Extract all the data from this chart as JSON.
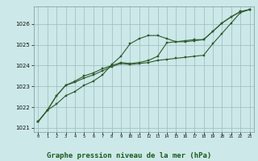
{
  "title": "Graphe pression niveau de la mer (hPa)",
  "hours": [
    0,
    1,
    2,
    3,
    4,
    5,
    6,
    7,
    8,
    9,
    10,
    11,
    12,
    13,
    14,
    15,
    16,
    17,
    18,
    19,
    20,
    21,
    22,
    23
  ],
  "line1": [
    1021.3,
    1021.85,
    1022.15,
    1022.55,
    1022.75,
    1023.05,
    1023.25,
    1023.55,
    1024.05,
    1024.45,
    1025.05,
    1025.3,
    1025.45,
    1025.45,
    1025.3,
    1025.15,
    1025.15,
    1025.2,
    1025.25,
    1025.65,
    1026.05,
    1026.35,
    1026.6,
    1026.7
  ],
  "line2": [
    1021.3,
    1021.85,
    1022.55,
    1023.05,
    1023.25,
    1023.5,
    1023.65,
    1023.85,
    1024.0,
    1024.15,
    1024.1,
    1024.15,
    1024.25,
    1024.45,
    1025.1,
    1025.15,
    1025.2,
    1025.25,
    1025.25,
    1025.65,
    1026.05,
    1026.35,
    1026.6,
    1026.7
  ],
  "line3": [
    1021.3,
    1021.85,
    1022.55,
    1023.05,
    1023.2,
    1023.4,
    1023.55,
    1023.75,
    1023.95,
    1024.1,
    1024.05,
    1024.1,
    1024.15,
    1024.25,
    1024.3,
    1024.35,
    1024.4,
    1024.45,
    1024.5,
    1025.05,
    1025.55,
    1026.05,
    1026.55,
    1026.7
  ],
  "line_color": "#2d5a2d",
  "bg_color": "#cce8e8",
  "grid_color": "#9bbcbc",
  "title_color": "#1a5c1a",
  "ylim": [
    1020.8,
    1026.85
  ],
  "yticks": [
    1021,
    1022,
    1023,
    1024,
    1025,
    1026
  ],
  "xlim": [
    -0.5,
    23.5
  ]
}
